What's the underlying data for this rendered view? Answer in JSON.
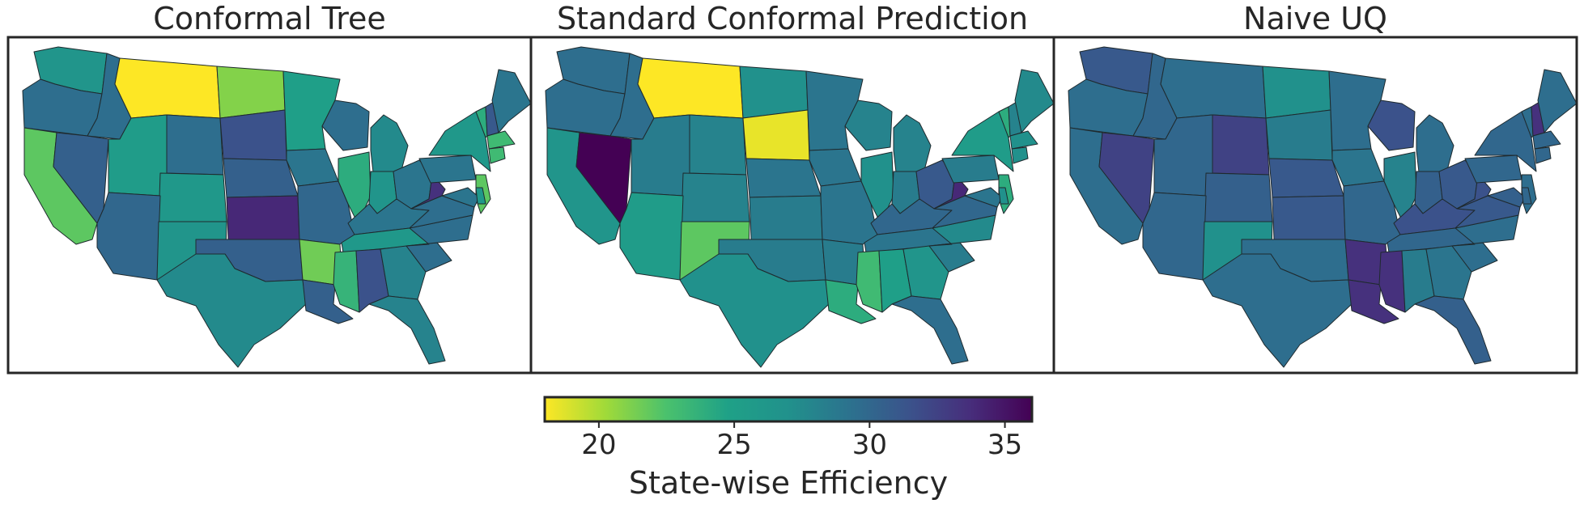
{
  "panels": [
    {
      "title": "Conformal Tree",
      "states": {
        "WA": 26.5,
        "OR": 29.5,
        "CA": 22,
        "NV": 30.5,
        "ID": 29.5,
        "MT": 18,
        "WY": 29.5,
        "UT": 25.5,
        "AZ": 30,
        "CO": 26,
        "NM": 26.5,
        "ND": 21,
        "SD": 31.5,
        "NE": 30.5,
        "KS": 34,
        "OK": 30.5,
        "TX": 27.5,
        "MN": 25,
        "IA": 29,
        "MO": 30,
        "AR": 21.5,
        "LA": 30.5,
        "WI": 29.5,
        "IL": 24,
        "MI": 27.5,
        "IN": 26.5,
        "OH": 29,
        "KY": 29,
        "TN": 26,
        "MS": 23.5,
        "AL": 31.5,
        "GA": 28,
        "FL": 28,
        "SC": 29.5,
        "NC": 29.5,
        "VA": 29.5,
        "WV": 33.5,
        "PA": 29,
        "NY": 26,
        "VT": 24,
        "NH": 31,
        "ME": 29,
        "MA": 23,
        "CT": 23,
        "NJ": 22,
        "MD": 29,
        "DE": 26
      }
    },
    {
      "title": "Standard Conformal Prediction",
      "states": {
        "WA": 29.5,
        "OR": 29.5,
        "CA": 26.5,
        "NV": 36,
        "ID": 29.5,
        "MT": 18,
        "WY": 28,
        "UT": 28.5,
        "AZ": 25.5,
        "CO": 28,
        "NM": 22,
        "ND": 27,
        "SD": 18.5,
        "NE": 29,
        "KS": 28.5,
        "OK": 28.5,
        "TX": 27,
        "MN": 29,
        "IA": 29,
        "MO": 29,
        "AR": 28.5,
        "LA": 24,
        "WI": 28,
        "IL": 27,
        "MI": 28,
        "IN": 28.5,
        "OH": 31,
        "KY": 30,
        "TN": 29,
        "MS": 23,
        "AL": 25,
        "GA": 26.5,
        "FL": 29.5,
        "SC": 28.5,
        "NC": 27.5,
        "VA": 30,
        "WV": 34,
        "PA": 28.5,
        "NY": 25.5,
        "VT": 24,
        "NH": 28,
        "ME": 27.5,
        "MA": 27,
        "CT": 27,
        "NJ": 24,
        "MD": 29,
        "DE": 27
      }
    },
    {
      "title": "Naive UQ",
      "states": {
        "WA": 31,
        "OR": 29.5,
        "CA": 29.5,
        "NV": 32.5,
        "ID": 30,
        "MT": 29.5,
        "WY": 32.5,
        "UT": 30,
        "AZ": 30,
        "CO": 30.5,
        "NM": 27,
        "ND": 27,
        "SD": 28.5,
        "NE": 31,
        "KS": 31,
        "OK": 29.5,
        "TX": 29.5,
        "MN": 29.5,
        "IA": 29,
        "MO": 30,
        "AR": 33.5,
        "LA": 33.5,
        "WI": 31.5,
        "IL": 28,
        "MI": 29.5,
        "IN": 30.5,
        "OH": 31,
        "KY": 31.5,
        "TN": 30,
        "MS": 33.5,
        "AL": 28.5,
        "GA": 29,
        "FL": 30.5,
        "SC": 29.5,
        "NC": 29.5,
        "VA": 31,
        "WV": 31.5,
        "PA": 30,
        "NY": 30,
        "VT": 29.5,
        "NH": 33.5,
        "ME": 29.5,
        "MA": 30,
        "CT": 30,
        "NJ": 29.5,
        "MD": 30.5,
        "DE": 30
      }
    }
  ],
  "colorbar": {
    "label": "State-wise Efficiency",
    "min": 18,
    "max": 36,
    "ticks": [
      20,
      25,
      30,
      35
    ],
    "tick_labels": [
      "20",
      "25",
      "30",
      "35"
    ],
    "colormap": "viridis_r"
  }
}
